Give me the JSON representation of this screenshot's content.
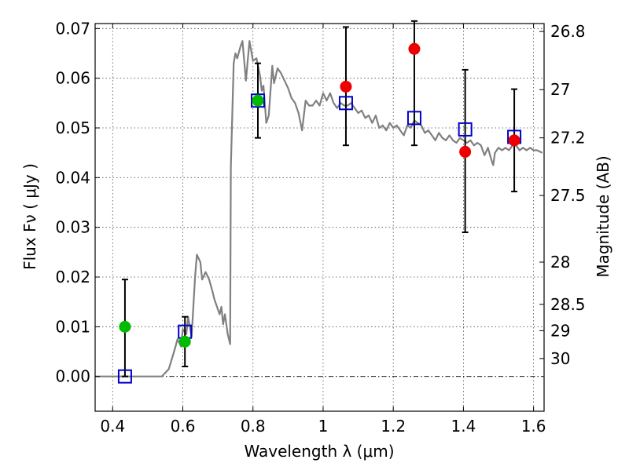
{
  "chart_data": {
    "type": "scatter",
    "title": "",
    "xlabel": "Wavelength  λ (μm)",
    "ylabel": "Flux  Fν  ( μJy )",
    "ylabel_right": "Magnitude (AB)",
    "xlim": [
      0.35,
      1.63
    ],
    "ylim": [
      -0.007,
      0.071
    ],
    "x_ticks": [
      0.4,
      0.6,
      0.8,
      1.0,
      1.2,
      1.4,
      1.6
    ],
    "x_tick_labels": [
      "0.4",
      "0.6",
      "0.8",
      "1",
      "1.2",
      "1.4",
      "1.6"
    ],
    "y_ticks": [
      0.0,
      0.01,
      0.02,
      0.03,
      0.04,
      0.05,
      0.06,
      0.07
    ],
    "y_tick_labels": [
      "0.00",
      "0.01",
      "0.02",
      "0.03",
      "0.04",
      "0.05",
      "0.06",
      "0.07"
    ],
    "right_ticks": [
      {
        "label": "26.8",
        "flux": 0.0694
      },
      {
        "label": "27",
        "flux": 0.0577
      },
      {
        "label": "27.2",
        "flux": 0.048
      },
      {
        "label": "27.5",
        "flux": 0.0364
      },
      {
        "label": "28",
        "flux": 0.023
      },
      {
        "label": "28.5",
        "flux": 0.0145
      },
      {
        "label": "29",
        "flux": 0.0092
      },
      {
        "label": "30",
        "flux": 0.0036
      }
    ],
    "grid": true,
    "zero_line": true,
    "model_sed": {
      "color": "#808080",
      "points": [
        [
          0.35,
          0.0
        ],
        [
          0.54,
          0.0
        ],
        [
          0.56,
          0.0015
        ],
        [
          0.575,
          0.005
        ],
        [
          0.585,
          0.0075
        ],
        [
          0.595,
          0.006
        ],
        [
          0.6,
          0.0095
        ],
        [
          0.61,
          0.0085
        ],
        [
          0.615,
          0.012
        ],
        [
          0.625,
          0.008
        ],
        [
          0.635,
          0.02
        ],
        [
          0.64,
          0.0245
        ],
        [
          0.65,
          0.023
        ],
        [
          0.655,
          0.0195
        ],
        [
          0.665,
          0.021
        ],
        [
          0.675,
          0.0195
        ],
        [
          0.685,
          0.017
        ],
        [
          0.69,
          0.0155
        ],
        [
          0.695,
          0.0145
        ],
        [
          0.7,
          0.0135
        ],
        [
          0.705,
          0.0125
        ],
        [
          0.71,
          0.014
        ],
        [
          0.715,
          0.0105
        ],
        [
          0.72,
          0.0125
        ],
        [
          0.728,
          0.0085
        ],
        [
          0.735,
          0.0065
        ],
        [
          0.737,
          0.042
        ],
        [
          0.745,
          0.063
        ],
        [
          0.75,
          0.065
        ],
        [
          0.755,
          0.064
        ],
        [
          0.765,
          0.0665
        ],
        [
          0.77,
          0.0675
        ],
        [
          0.78,
          0.0595
        ],
        [
          0.79,
          0.0675
        ],
        [
          0.8,
          0.0635
        ],
        [
          0.81,
          0.064
        ],
        [
          0.82,
          0.0605
        ],
        [
          0.825,
          0.0575
        ],
        [
          0.83,
          0.0585
        ],
        [
          0.838,
          0.051
        ],
        [
          0.845,
          0.0525
        ],
        [
          0.855,
          0.0625
        ],
        [
          0.86,
          0.059
        ],
        [
          0.87,
          0.062
        ],
        [
          0.88,
          0.061
        ],
        [
          0.89,
          0.0595
        ],
        [
          0.9,
          0.058
        ],
        [
          0.91,
          0.056
        ],
        [
          0.92,
          0.055
        ],
        [
          0.93,
          0.053
        ],
        [
          0.94,
          0.0495
        ],
        [
          0.95,
          0.0555
        ],
        [
          0.96,
          0.0545
        ],
        [
          0.97,
          0.0545
        ],
        [
          0.98,
          0.0555
        ],
        [
          0.99,
          0.0545
        ],
        [
          1.0,
          0.057
        ],
        [
          1.01,
          0.0555
        ],
        [
          1.02,
          0.057
        ],
        [
          1.03,
          0.055
        ],
        [
          1.04,
          0.054
        ],
        [
          1.05,
          0.055
        ],
        [
          1.06,
          0.0545
        ],
        [
          1.07,
          0.0545
        ],
        [
          1.08,
          0.055
        ],
        [
          1.09,
          0.054
        ],
        [
          1.1,
          0.053
        ],
        [
          1.11,
          0.0535
        ],
        [
          1.12,
          0.052
        ],
        [
          1.13,
          0.0525
        ],
        [
          1.14,
          0.051
        ],
        [
          1.15,
          0.0525
        ],
        [
          1.16,
          0.05
        ],
        [
          1.17,
          0.0505
        ],
        [
          1.18,
          0.0495
        ],
        [
          1.19,
          0.051
        ],
        [
          1.2,
          0.05
        ],
        [
          1.21,
          0.0505
        ],
        [
          1.22,
          0.0495
        ],
        [
          1.23,
          0.0485
        ],
        [
          1.24,
          0.0505
        ],
        [
          1.25,
          0.05
        ],
        [
          1.26,
          0.0515
        ],
        [
          1.27,
          0.051
        ],
        [
          1.28,
          0.0505
        ],
        [
          1.29,
          0.049
        ],
        [
          1.3,
          0.0495
        ],
        [
          1.31,
          0.0485
        ],
        [
          1.32,
          0.0475
        ],
        [
          1.33,
          0.049
        ],
        [
          1.34,
          0.048
        ],
        [
          1.35,
          0.0475
        ],
        [
          1.36,
          0.0485
        ],
        [
          1.37,
          0.0475
        ],
        [
          1.38,
          0.047
        ],
        [
          1.39,
          0.048
        ],
        [
          1.4,
          0.0475
        ],
        [
          1.41,
          0.047
        ],
        [
          1.42,
          0.0475
        ],
        [
          1.43,
          0.0465
        ],
        [
          1.44,
          0.047
        ],
        [
          1.45,
          0.0465
        ],
        [
          1.46,
          0.0445
        ],
        [
          1.47,
          0.046
        ],
        [
          1.48,
          0.0435
        ],
        [
          1.485,
          0.0425
        ],
        [
          1.49,
          0.045
        ],
        [
          1.5,
          0.046
        ],
        [
          1.51,
          0.0455
        ],
        [
          1.52,
          0.046
        ],
        [
          1.53,
          0.0455
        ],
        [
          1.54,
          0.0465
        ],
        [
          1.55,
          0.0465
        ],
        [
          1.56,
          0.0455
        ],
        [
          1.57,
          0.046
        ],
        [
          1.58,
          0.0455
        ],
        [
          1.59,
          0.046
        ],
        [
          1.6,
          0.0455
        ],
        [
          1.61,
          0.0455
        ],
        [
          1.625,
          0.045
        ]
      ]
    },
    "squares": {
      "color": "#0000cc",
      "points": [
        {
          "x": 0.435,
          "y": 0.0
        },
        {
          "x": 0.606,
          "y": 0.009
        },
        {
          "x": 0.814,
          "y": 0.0555
        },
        {
          "x": 1.065,
          "y": 0.055
        },
        {
          "x": 1.26,
          "y": 0.052
        },
        {
          "x": 1.405,
          "y": 0.0497
        },
        {
          "x": 1.545,
          "y": 0.0482
        }
      ]
    },
    "green_points": {
      "color": "#00bb00",
      "points": [
        {
          "x": 0.435,
          "y": 0.01
        },
        {
          "x": 0.606,
          "y": 0.007
        },
        {
          "x": 0.814,
          "y": 0.0555
        }
      ]
    },
    "red_points": {
      "color": "#ee0000",
      "points": [
        {
          "x": 1.065,
          "y": 0.0583
        },
        {
          "x": 1.26,
          "y": 0.0659
        },
        {
          "x": 1.405,
          "y": 0.0452
        },
        {
          "x": 1.545,
          "y": 0.0475
        }
      ]
    },
    "error_bars": [
      {
        "x": 0.435,
        "low": 0.0,
        "high": 0.0195
      },
      {
        "x": 0.606,
        "low": 0.002,
        "high": 0.012
      },
      {
        "x": 0.814,
        "low": 0.048,
        "high": 0.063
      },
      {
        "x": 1.065,
        "low": 0.0465,
        "high": 0.0703
      },
      {
        "x": 1.26,
        "low": 0.0465,
        "high": 0.0715
      },
      {
        "x": 1.405,
        "low": 0.029,
        "high": 0.0617
      },
      {
        "x": 1.545,
        "low": 0.0372,
        "high": 0.0578
      }
    ]
  }
}
